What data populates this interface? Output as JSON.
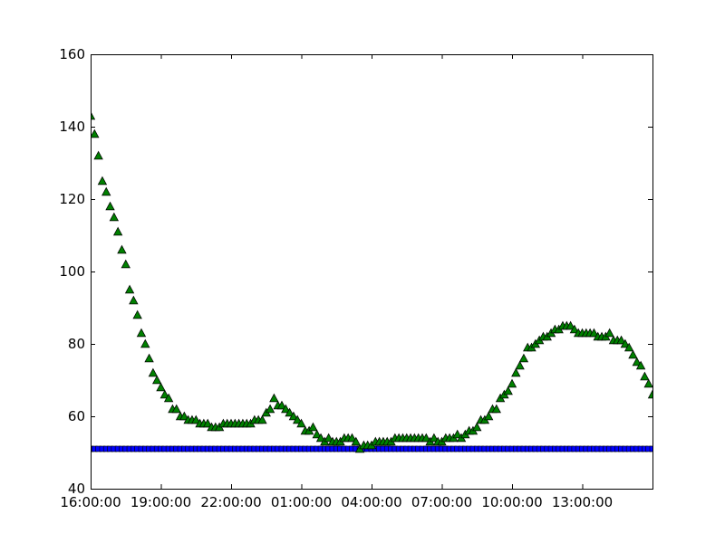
{
  "chart_data": {
    "type": "scatter",
    "title": "",
    "xlabel": "",
    "ylabel": "",
    "ylim": [
      40,
      160
    ],
    "xlim_hours": [
      16,
      40
    ],
    "grid": false,
    "x_tick_labels": [
      "16:00:00",
      "19:00:00",
      "22:00:00",
      "01:00:00",
      "04:00:00",
      "07:00:00",
      "10:00:00",
      "13:00:00"
    ],
    "y_tick_labels": [
      "40",
      "60",
      "80",
      "100",
      "120",
      "140",
      "160"
    ],
    "y_ticks": [
      40,
      60,
      80,
      100,
      120,
      140,
      160
    ],
    "series": [
      {
        "marker": "square",
        "color": "#0000ff",
        "constant_value": 51
      },
      {
        "marker": "triangle",
        "color": "#008000",
        "points": [
          [
            "16:00",
            143
          ],
          [
            "16:10",
            138
          ],
          [
            "16:20",
            132
          ],
          [
            "16:30",
            125
          ],
          [
            "16:40",
            122
          ],
          [
            "16:50",
            118
          ],
          [
            "17:00",
            115
          ],
          [
            "17:10",
            111
          ],
          [
            "17:20",
            106
          ],
          [
            "17:30",
            102
          ],
          [
            "17:40",
            95
          ],
          [
            "17:50",
            92
          ],
          [
            "18:00",
            88
          ],
          [
            "18:10",
            83
          ],
          [
            "18:20",
            80
          ],
          [
            "18:30",
            76
          ],
          [
            "18:40",
            72
          ],
          [
            "18:50",
            70
          ],
          [
            "19:00",
            68
          ],
          [
            "19:10",
            66
          ],
          [
            "19:20",
            65
          ],
          [
            "19:30",
            62
          ],
          [
            "19:40",
            62
          ],
          [
            "19:50",
            60
          ],
          [
            "20:00",
            60
          ],
          [
            "20:10",
            59
          ],
          [
            "20:20",
            59
          ],
          [
            "20:30",
            59
          ],
          [
            "20:40",
            58
          ],
          [
            "20:50",
            58
          ],
          [
            "21:00",
            58
          ],
          [
            "21:10",
            57
          ],
          [
            "21:20",
            57
          ],
          [
            "21:30",
            57
          ],
          [
            "21:40",
            58
          ],
          [
            "21:50",
            58
          ],
          [
            "22:00",
            58
          ],
          [
            "22:10",
            58
          ],
          [
            "22:20",
            58
          ],
          [
            "22:30",
            58
          ],
          [
            "22:40",
            58
          ],
          [
            "22:50",
            58
          ],
          [
            "23:00",
            59
          ],
          [
            "23:10",
            59
          ],
          [
            "23:20",
            59
          ],
          [
            "23:30",
            61
          ],
          [
            "23:40",
            62
          ],
          [
            "23:50",
            65
          ],
          [
            "00:00",
            63
          ],
          [
            "00:10",
            63
          ],
          [
            "00:20",
            62
          ],
          [
            "00:30",
            61
          ],
          [
            "00:40",
            60
          ],
          [
            "00:50",
            59
          ],
          [
            "01:00",
            58
          ],
          [
            "01:10",
            56
          ],
          [
            "01:20",
            56
          ],
          [
            "01:30",
            57
          ],
          [
            "01:40",
            55
          ],
          [
            "01:50",
            54
          ],
          [
            "02:00",
            53
          ],
          [
            "02:10",
            54
          ],
          [
            "02:20",
            53
          ],
          [
            "02:30",
            53
          ],
          [
            "02:40",
            53
          ],
          [
            "02:50",
            54
          ],
          [
            "03:00",
            54
          ],
          [
            "03:10",
            54
          ],
          [
            "03:20",
            53
          ],
          [
            "03:30",
            51
          ],
          [
            "03:40",
            52
          ],
          [
            "03:50",
            52
          ],
          [
            "04:00",
            52
          ],
          [
            "04:10",
            53
          ],
          [
            "04:20",
            53
          ],
          [
            "04:30",
            53
          ],
          [
            "04:40",
            53
          ],
          [
            "04:50",
            53
          ],
          [
            "05:00",
            54
          ],
          [
            "05:10",
            54
          ],
          [
            "05:20",
            54
          ],
          [
            "05:30",
            54
          ],
          [
            "05:40",
            54
          ],
          [
            "05:50",
            54
          ],
          [
            "06:00",
            54
          ],
          [
            "06:10",
            54
          ],
          [
            "06:20",
            54
          ],
          [
            "06:30",
            53
          ],
          [
            "06:40",
            54
          ],
          [
            "06:50",
            53
          ],
          [
            "07:00",
            53
          ],
          [
            "07:10",
            54
          ],
          [
            "07:20",
            54
          ],
          [
            "07:30",
            54
          ],
          [
            "07:40",
            55
          ],
          [
            "07:50",
            54
          ],
          [
            "08:00",
            55
          ],
          [
            "08:10",
            56
          ],
          [
            "08:20",
            56
          ],
          [
            "08:30",
            57
          ],
          [
            "08:40",
            59
          ],
          [
            "08:50",
            59
          ],
          [
            "09:00",
            60
          ],
          [
            "09:10",
            62
          ],
          [
            "09:20",
            62
          ],
          [
            "09:30",
            65
          ],
          [
            "09:40",
            66
          ],
          [
            "09:50",
            67
          ],
          [
            "10:00",
            69
          ],
          [
            "10:10",
            72
          ],
          [
            "10:20",
            74
          ],
          [
            "10:30",
            76
          ],
          [
            "10:40",
            79
          ],
          [
            "10:50",
            79
          ],
          [
            "11:00",
            80
          ],
          [
            "11:10",
            81
          ],
          [
            "11:20",
            82
          ],
          [
            "11:30",
            82
          ],
          [
            "11:40",
            83
          ],
          [
            "11:50",
            84
          ],
          [
            "12:00",
            84
          ],
          [
            "12:10",
            85
          ],
          [
            "12:20",
            85
          ],
          [
            "12:30",
            85
          ],
          [
            "12:40",
            84
          ],
          [
            "12:50",
            83
          ],
          [
            "13:00",
            83
          ],
          [
            "13:10",
            83
          ],
          [
            "13:20",
            83
          ],
          [
            "13:30",
            83
          ],
          [
            "13:40",
            82
          ],
          [
            "13:50",
            82
          ],
          [
            "14:00",
            82
          ],
          [
            "14:10",
            83
          ],
          [
            "14:20",
            81
          ],
          [
            "14:30",
            81
          ],
          [
            "14:40",
            81
          ],
          [
            "14:50",
            80
          ],
          [
            "15:00",
            79
          ],
          [
            "15:10",
            77
          ],
          [
            "15:20",
            75
          ],
          [
            "15:30",
            74
          ],
          [
            "15:40",
            71
          ],
          [
            "15:50",
            69
          ],
          [
            "16:00",
            66
          ]
        ]
      }
    ]
  }
}
